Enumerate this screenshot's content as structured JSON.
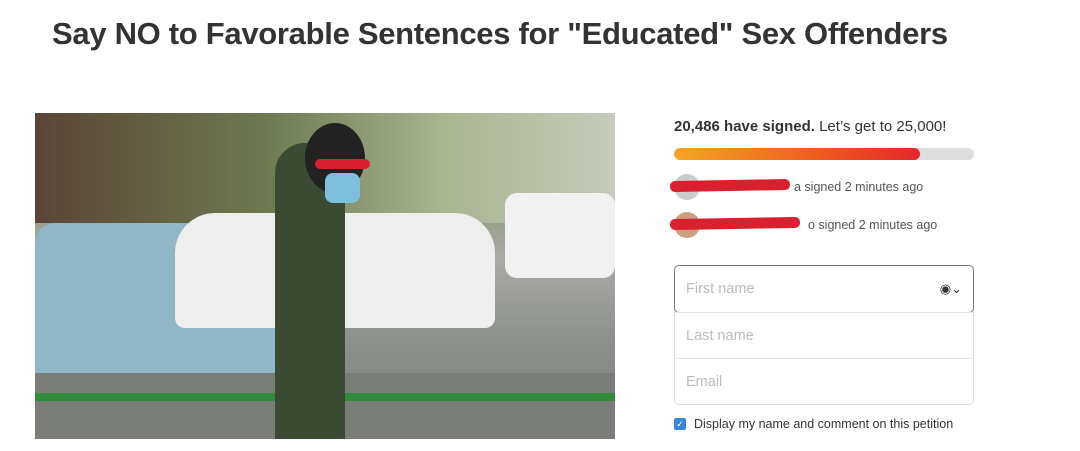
{
  "title": "Say NO to Favorable Sentences for \"Educated\" Sex Offenders",
  "signatures": {
    "count_text": "20,486 have signed.",
    "goal_text": "Let’s get to 25,000!",
    "progress_percent": 82,
    "bar_color_start": "#f5a623",
    "bar_color_end": "#e4262b"
  },
  "recent_signers": [
    {
      "text": "a signed 2 minutes ago"
    },
    {
      "text": "o signed 2 minutes ago"
    }
  ],
  "form": {
    "first_name_placeholder": "First name",
    "last_name_placeholder": "Last name",
    "email_placeholder": "Email",
    "contact_icon": "user-circle-icon",
    "display_checkbox_label": "Display my name and comment on this petition",
    "display_checked": true
  }
}
